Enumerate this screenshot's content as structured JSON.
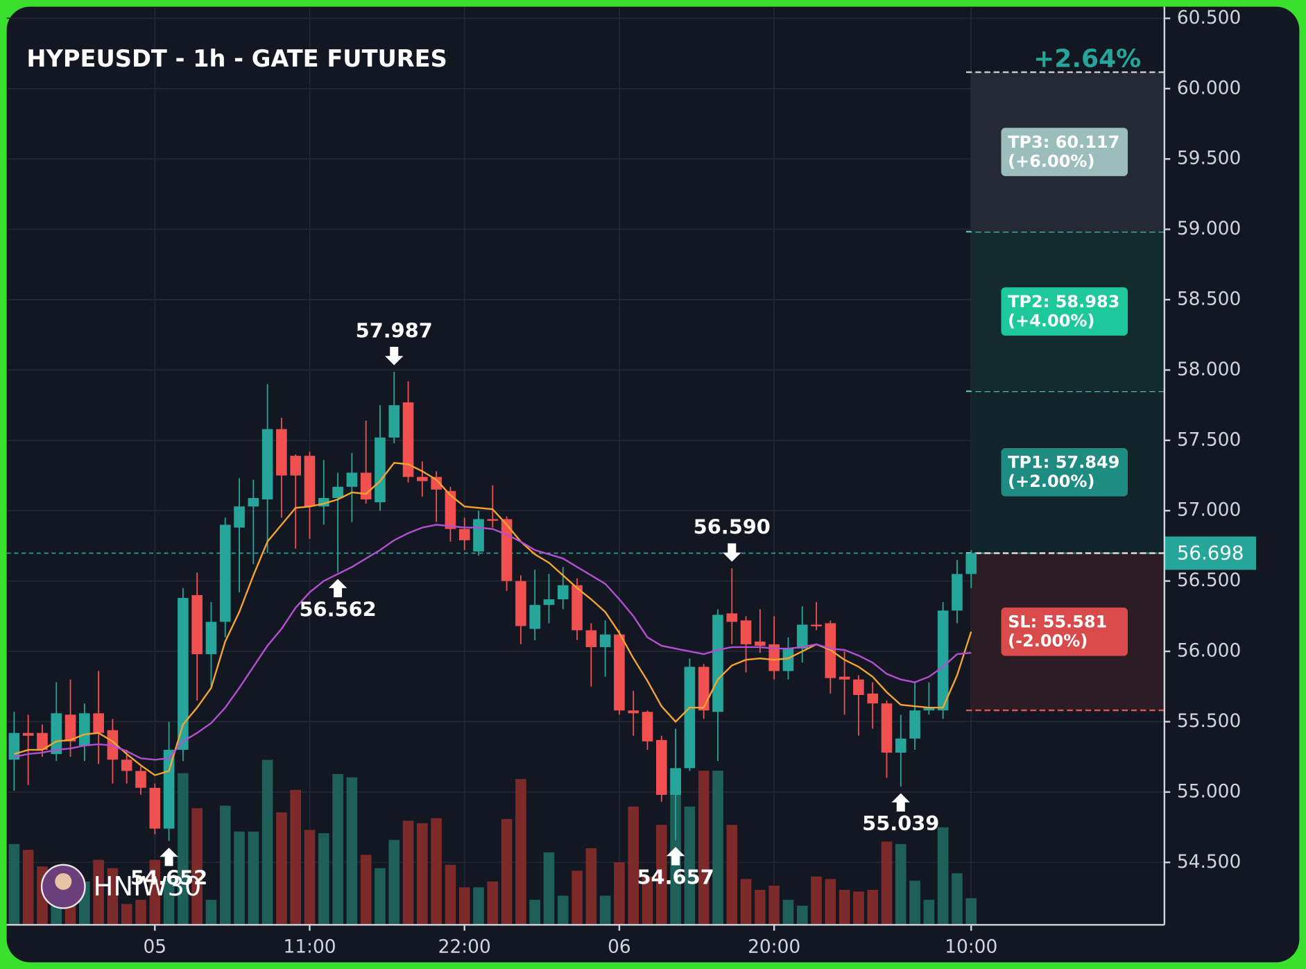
{
  "chart_data": {
    "type": "candlestick",
    "title": "HYPEUSDT - 1h - GATE FUTURES",
    "change_label": "+2.64%",
    "watermark": "HNIW30",
    "up_color": "#26a69a",
    "down_color": "#f0504f",
    "volume_up_color": "#1f5f5a",
    "volume_down_color": "#7c2a2a",
    "grid": true,
    "xlim": [
      -0.53,
      81.73
    ],
    "xticks": [
      {
        "value": 10,
        "label": "05"
      },
      {
        "value": 21,
        "label": "11:00"
      },
      {
        "value": 32,
        "label": "22:00"
      },
      {
        "value": 43,
        "label": "06"
      },
      {
        "value": 54,
        "label": "20:00"
      },
      {
        "value": 68,
        "label": "10:00"
      }
    ],
    "ylim": [
      54.056,
      60.565
    ],
    "yticks": [
      {
        "value": 54.5,
        "label": "54.500"
      },
      {
        "value": 55,
        "label": "55.000"
      },
      {
        "value": 55.5,
        "label": "55.500"
      },
      {
        "value": 56,
        "label": "56.000"
      },
      {
        "value": 56.5,
        "label": "56.500"
      },
      {
        "value": 57,
        "label": "57.000"
      },
      {
        "value": 57.5,
        "label": "57.500"
      },
      {
        "value": 58,
        "label": "58.000"
      },
      {
        "value": 58.5,
        "label": "58.500"
      },
      {
        "value": 59,
        "label": "59.000"
      },
      {
        "value": 59.5,
        "label": "59.500"
      },
      {
        "value": 60,
        "label": "60.000"
      },
      {
        "value": 60.5,
        "label": "60.500"
      }
    ],
    "open": [
      55.23,
      55.42,
      55.42,
      55.27,
      55.55,
      55.33,
      55.56,
      55.44,
      55.23,
      55.15,
      55.03,
      54.74,
      55.3,
      56.4,
      55.98,
      56.21,
      56.88,
      57.03,
      57.08,
      57.58,
      57.39,
      57.39,
      57.03,
      57.09,
      57.17,
      57.27,
      57.06,
      57.52,
      57.77,
      57.24,
      57.24,
      57.14,
      56.87,
      56.71,
      56.94,
      56.94,
      56.5,
      56.16,
      56.33,
      56.37,
      56.47,
      56.15,
      56.03,
      56.12,
      55.58,
      55.57,
      55.37,
      54.98,
      55.17,
      55.89,
      55.57,
      56.27,
      56.22,
      56.07,
      56.05,
      55.86,
      56.02,
      56.19,
      56.2,
      55.82,
      55.8,
      55.7,
      55.63,
      55.28,
      55.38,
      55.58,
      55.58,
      56.29,
      56.55
    ],
    "high": [
      55.57,
      55.55,
      55.48,
      55.78,
      55.8,
      55.63,
      55.86,
      55.52,
      55.3,
      55.18,
      55.06,
      55.5,
      56.45,
      56.56,
      56.35,
      56.95,
      57.23,
      57.22,
      57.9,
      57.66,
      57.4,
      57.42,
      57.36,
      57.27,
      57.41,
      57.64,
      57.75,
      57.987,
      57.92,
      57.35,
      57.28,
      57.17,
      56.95,
      57.0,
      57.18,
      56.96,
      56.54,
      56.58,
      56.55,
      56.6,
      56.52,
      56.2,
      56.22,
      56.15,
      55.72,
      55.58,
      55.4,
      55.45,
      55.95,
      55.91,
      56.3,
      56.59,
      56.25,
      56.3,
      56.25,
      56.1,
      56.32,
      56.35,
      56.22,
      56.0,
      55.83,
      55.78,
      55.65,
      55.55,
      55.78,
      55.78,
      56.35,
      56.65,
      56.72
    ],
    "low": [
      55.01,
      55.05,
      55.25,
      55.22,
      55.25,
      55.22,
      55.2,
      55.06,
      55.06,
      54.98,
      54.7,
      54.652,
      55.22,
      55.65,
      55.75,
      56.1,
      56.42,
      56.62,
      56.7,
      56.95,
      56.73,
      56.8,
      56.9,
      56.562,
      56.92,
      57.05,
      57.0,
      57.48,
      57.2,
      57.1,
      56.92,
      56.78,
      56.72,
      56.68,
      56.88,
      56.43,
      56.05,
      56.08,
      56.2,
      56.3,
      56.08,
      55.75,
      55.82,
      55.55,
      55.4,
      55.3,
      54.93,
      54.657,
      55.15,
      55.52,
      55.22,
      56.05,
      55.85,
      55.99,
      55.8,
      55.8,
      55.92,
      56.15,
      55.7,
      55.55,
      55.4,
      55.45,
      55.1,
      55.039,
      55.3,
      55.55,
      55.52,
      56.2,
      56.45
    ],
    "close": [
      55.42,
      55.4,
      55.3,
      55.56,
      55.36,
      55.56,
      55.42,
      55.23,
      55.15,
      55.03,
      54.74,
      55.3,
      56.38,
      55.98,
      56.21,
      56.9,
      57.03,
      57.09,
      57.58,
      57.25,
      57.25,
      57.03,
      57.09,
      57.17,
      57.27,
      57.08,
      57.52,
      57.75,
      57.24,
      57.21,
      57.15,
      56.87,
      56.79,
      56.94,
      56.93,
      56.5,
      56.18,
      56.33,
      56.37,
      56.47,
      56.15,
      56.03,
      56.12,
      55.58,
      55.56,
      55.36,
      54.98,
      55.17,
      55.89,
      55.58,
      56.26,
      56.21,
      56.05,
      56.04,
      55.86,
      56.02,
      56.19,
      56.18,
      55.81,
      55.8,
      55.69,
      55.63,
      55.28,
      55.38,
      55.58,
      55.6,
      56.29,
      56.55,
      56.698
    ],
    "volume": [
      97,
      90,
      70,
      45,
      50,
      52,
      78,
      68,
      25,
      30,
      78,
      55,
      182,
      140,
      30,
      143,
      112,
      112,
      198,
      135,
      162,
      114,
      110,
      181,
      177,
      84,
      68,
      102,
      125,
      122,
      128,
      72,
      45,
      45,
      52,
      127,
      175,
      30,
      87,
      35,
      65,
      92,
      35,
      75,
      142,
      58,
      120,
      188,
      142,
      185,
      185,
      120,
      55,
      42,
      47,
      30,
      23,
      58,
      55,
      42,
      40,
      42,
      100,
      97,
      53,
      30,
      117,
      62,
      32
    ],
    "moving_averages": [
      {
        "color": "#f5a431",
        "values": [
          55.27,
          55.3,
          55.3,
          55.36,
          55.37,
          55.41,
          55.42,
          55.36,
          55.27,
          55.19,
          55.12,
          55.15,
          55.48,
          55.6,
          55.74,
          56.07,
          56.28,
          56.54,
          56.78,
          56.9,
          57.02,
          57.03,
          57.05,
          57.08,
          57.13,
          57.12,
          57.21,
          57.34,
          57.33,
          57.28,
          57.22,
          57.11,
          57.03,
          57.02,
          57.01,
          56.9,
          56.78,
          56.69,
          56.63,
          56.54,
          56.45,
          56.37,
          56.28,
          56.13,
          55.95,
          55.79,
          55.61,
          55.5,
          55.6,
          55.6,
          55.8,
          55.9,
          55.94,
          55.95,
          55.94,
          55.95,
          56.0,
          56.05,
          56.01,
          55.94,
          55.89,
          55.82,
          55.71,
          55.62,
          55.61,
          55.6,
          55.6,
          55.83,
          56.14
        ]
      },
      {
        "color": "#b44fd2",
        "values": [
          55.25,
          55.27,
          55.28,
          55.3,
          55.31,
          55.33,
          55.34,
          55.33,
          55.29,
          55.24,
          55.23,
          55.24,
          55.36,
          55.42,
          55.49,
          55.6,
          55.74,
          55.89,
          56.04,
          56.16,
          56.31,
          56.42,
          56.5,
          56.55,
          56.6,
          56.66,
          56.72,
          56.79,
          56.84,
          56.88,
          56.9,
          56.89,
          56.88,
          56.88,
          56.87,
          56.83,
          56.78,
          56.72,
          56.69,
          56.66,
          56.6,
          56.54,
          56.48,
          56.37,
          56.25,
          56.1,
          56.04,
          56.02,
          56.0,
          55.98,
          56.01,
          56.03,
          56.03,
          56.03,
          56.02,
          56.02,
          56.03,
          56.05,
          56.02,
          56.01,
          55.97,
          55.92,
          55.84,
          55.8,
          55.78,
          55.82,
          55.89,
          55.98,
          55.99
        ]
      }
    ],
    "annotations": [
      {
        "x": 27,
        "value": 57.987,
        "label": "57.987",
        "position": "high"
      },
      {
        "x": 23,
        "value": 56.562,
        "label": "56.562",
        "position": "low"
      },
      {
        "x": 11,
        "value": 54.652,
        "label": "54.652",
        "position": "low"
      },
      {
        "x": 47,
        "value": 54.657,
        "label": "54.657",
        "position": "low"
      },
      {
        "x": 51,
        "value": 56.59,
        "label": "56.590",
        "position": "high"
      },
      {
        "x": 63,
        "value": 55.039,
        "label": "55.039",
        "position": "low"
      }
    ],
    "entry": {
      "value": 56.698,
      "label": "56.698",
      "color": "#26a69a"
    },
    "levels": [
      {
        "value": 57.849,
        "label": "TP1: 57.849",
        "pct_label": "(+2.00%)",
        "zone_color": "#122329",
        "box_color": "#1f8c82",
        "line_color": "#4fc3b0"
      },
      {
        "value": 58.983,
        "label": "TP2: 58.983",
        "pct_label": "(+4.00%)",
        "zone_color": "#142b2e",
        "box_color": "#1dc99b",
        "line_color": "#4fc3b0"
      },
      {
        "value": 60.117,
        "label": "TP3: 60.117",
        "pct_label": "(+6.00%)",
        "zone_color": "#242a34",
        "box_color": "#9bbdbb",
        "line_color": "#c8d0d0"
      },
      {
        "value": 55.581,
        "label": "SL: 55.581",
        "pct_label": "(-2.00%)",
        "zone_color": "#2c1d25",
        "box_color": "#d94a4a",
        "line_color": "#e05555"
      }
    ]
  }
}
